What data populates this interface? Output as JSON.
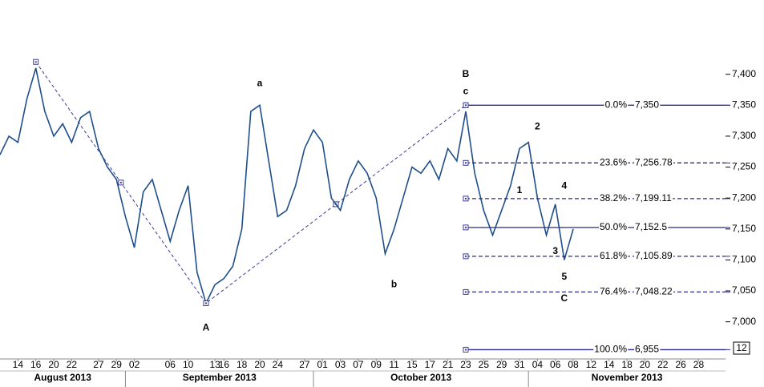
{
  "chart_data": {
    "type": "line",
    "color": "#1f4e8c",
    "xlim": [
      "2013-08-12",
      "2013-12-03"
    ],
    "ylim": [
      6940,
      7520
    ],
    "yticks": [
      {
        "value": 7000,
        "label": "7,000"
      },
      {
        "value": 7050,
        "label": "7,050"
      },
      {
        "value": 7100,
        "label": "7,100"
      },
      {
        "value": 7150,
        "label": "7,150"
      },
      {
        "value": 7200,
        "label": "7,200"
      },
      {
        "value": 7250,
        "label": "7,250"
      },
      {
        "value": 7300,
        "label": "7,300"
      },
      {
        "value": 7350,
        "label": "7,350"
      },
      {
        "value": 7400,
        "label": "7,400"
      }
    ],
    "months": [
      "August 2013",
      "September 2013",
      "October 2013",
      "November 2013"
    ],
    "xticks": [
      {
        "value": "2013-08-14",
        "label": "14"
      },
      {
        "value": "2013-08-16",
        "label": "16"
      },
      {
        "value": "2013-08-20",
        "label": "20"
      },
      {
        "value": "2013-08-22",
        "label": "22"
      },
      {
        "value": "2013-08-27",
        "label": "27"
      },
      {
        "value": "2013-08-29",
        "label": "29"
      },
      {
        "value": "2013-09-02",
        "label": "02"
      },
      {
        "value": "2013-09-06",
        "label": "06"
      },
      {
        "value": "2013-09-10",
        "label": "10"
      },
      {
        "value": "2013-09-13",
        "label": "13"
      },
      {
        "value": "2013-09-16",
        "label": "16"
      },
      {
        "value": "2013-09-18",
        "label": "18"
      },
      {
        "value": "2013-09-20",
        "label": "20"
      },
      {
        "value": "2013-09-24",
        "label": "24"
      },
      {
        "value": "2013-09-27",
        "label": "27"
      },
      {
        "value": "2013-10-01",
        "label": "01"
      },
      {
        "value": "2013-10-03",
        "label": "03"
      },
      {
        "value": "2013-10-07",
        "label": "07"
      },
      {
        "value": "2013-10-09",
        "label": "09"
      },
      {
        "value": "2013-10-11",
        "label": "11"
      },
      {
        "value": "2013-10-15",
        "label": "15"
      },
      {
        "value": "2013-10-17",
        "label": "17"
      },
      {
        "value": "2013-10-21",
        "label": "21"
      },
      {
        "value": "2013-10-23",
        "label": "23"
      },
      {
        "value": "2013-10-25",
        "label": "25"
      },
      {
        "value": "2013-10-29",
        "label": "29"
      },
      {
        "value": "2013-10-31",
        "label": "31"
      },
      {
        "value": "2013-11-04",
        "label": "04"
      },
      {
        "value": "2013-11-06",
        "label": "06"
      },
      {
        "value": "2013-11-08",
        "label": "08"
      },
      {
        "value": "2013-11-12",
        "label": "12"
      },
      {
        "value": "2013-11-14",
        "label": "14"
      },
      {
        "value": "2013-11-18",
        "label": "18"
      },
      {
        "value": "2013-11-20",
        "label": "20"
      },
      {
        "value": "2013-11-22",
        "label": "22"
      },
      {
        "value": "2013-11-26",
        "label": "26"
      },
      {
        "value": "2013-11-28",
        "label": "28"
      }
    ],
    "x": [
      "2013-08-12",
      "2013-08-13",
      "2013-08-14",
      "2013-08-15",
      "2013-08-16",
      "2013-08-19",
      "2013-08-20",
      "2013-08-21",
      "2013-08-22",
      "2013-08-23",
      "2013-08-26",
      "2013-08-27",
      "2013-08-28",
      "2013-08-29",
      "2013-08-30",
      "2013-09-02",
      "2013-09-03",
      "2013-09-04",
      "2013-09-05",
      "2013-09-06",
      "2013-09-09",
      "2013-09-10",
      "2013-09-11",
      "2013-09-12",
      "2013-09-13",
      "2013-09-16",
      "2013-09-17",
      "2013-09-18",
      "2013-09-19",
      "2013-09-20",
      "2013-09-23",
      "2013-09-24",
      "2013-09-25",
      "2013-09-26",
      "2013-09-27",
      "2013-09-30",
      "2013-10-01",
      "2013-10-02",
      "2013-10-03",
      "2013-10-04",
      "2013-10-07",
      "2013-10-08",
      "2013-10-09",
      "2013-10-10",
      "2013-10-11",
      "2013-10-14",
      "2013-10-15",
      "2013-10-16",
      "2013-10-17",
      "2013-10-18",
      "2013-10-21",
      "2013-10-22",
      "2013-10-23",
      "2013-10-24",
      "2013-10-25",
      "2013-10-28",
      "2013-10-29",
      "2013-10-30",
      "2013-10-31",
      "2013-11-01",
      "2013-11-04",
      "2013-11-05",
      "2013-11-06",
      "2013-11-07",
      "2013-11-08"
    ],
    "values": [
      7270,
      7300,
      7290,
      7360,
      7410,
      7340,
      7300,
      7320,
      7290,
      7330,
      7340,
      7280,
      7250,
      7230,
      7170,
      7120,
      7210,
      7230,
      7180,
      7130,
      7180,
      7220,
      7080,
      7030,
      7060,
      7070,
      7090,
      7150,
      7340,
      7350,
      7260,
      7170,
      7180,
      7220,
      7280,
      7310,
      7290,
      7200,
      7180,
      7230,
      7260,
      7240,
      7200,
      7110,
      7150,
      7200,
      7250,
      7240,
      7260,
      7230,
      7280,
      7260,
      7340,
      7240,
      7180,
      7140,
      7180,
      7220,
      7280,
      7290,
      7200,
      7140,
      7190,
      7100,
      7150
    ],
    "wave": {
      "x": [
        "2013-08-16",
        "2013-09-12",
        "2013-10-23"
      ],
      "values": [
        7420,
        7030,
        7350
      ]
    },
    "fib_levels": [
      {
        "percent": "0.0%",
        "value": 7350,
        "value_label": "7,350",
        "dashed": false
      },
      {
        "percent": "23.6%",
        "value": 7256.78,
        "value_label": "7,256.78",
        "dashed": true
      },
      {
        "percent": "38.2%",
        "value": 7199.11,
        "value_label": "7,199.11",
        "dashed": true
      },
      {
        "percent": "50.0%",
        "value": 7152.5,
        "value_label": "7,152.5",
        "dashed": false
      },
      {
        "percent": "61.8%",
        "value": 7105.89,
        "value_label": "7,105.89",
        "dashed": true
      },
      {
        "percent": "76.4%",
        "value": 7048.22,
        "value_label": "7,048.22",
        "dashed": true
      },
      {
        "percent": "100.0%",
        "value": 6955,
        "value_label": "6,955",
        "dashed": false
      }
    ],
    "annotations": [
      {
        "text": "a",
        "x": "2013-09-20",
        "y": 7385
      },
      {
        "text": "B",
        "x": "2013-10-23",
        "y": 7400
      },
      {
        "text": "c",
        "x": "2013-10-23",
        "y": 7372
      },
      {
        "text": "A",
        "x": "2013-09-12",
        "y": 6990
      },
      {
        "text": "b",
        "x": "2013-10-11",
        "y": 7060
      },
      {
        "text": "1",
        "x": "2013-10-31",
        "y": 7212
      },
      {
        "text": "2",
        "x": "2013-11-04",
        "y": 7315
      },
      {
        "text": "3",
        "x": "2013-11-06",
        "y": 7114
      },
      {
        "text": "4",
        "x": "2013-11-07",
        "y": 7219
      },
      {
        "text": "5",
        "x": "2013-11-07",
        "y": 7072
      },
      {
        "text": "C",
        "x": "2013-11-07",
        "y": 7037
      }
    ],
    "corner_label": "12"
  }
}
